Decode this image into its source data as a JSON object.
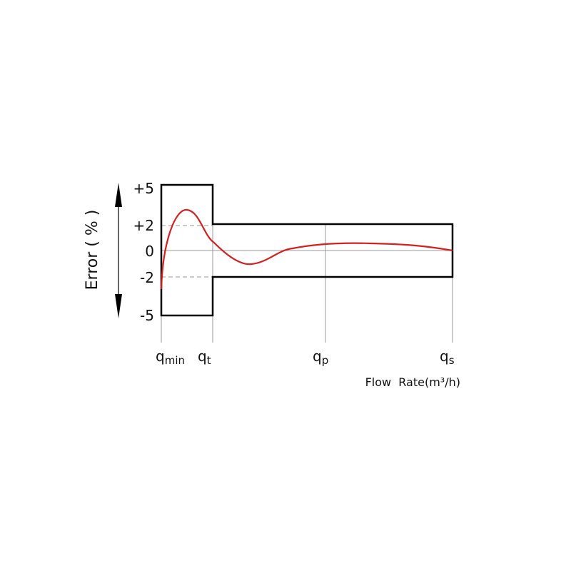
{
  "y_axis": {
    "title": "Error ( % )",
    "labels": [
      "+5",
      "+2",
      "0",
      "-2",
      "-5"
    ]
  },
  "x_axis": {
    "title": "Flow  Rate(m³/h)",
    "labels": [
      {
        "symbol": "q",
        "sub": "min"
      },
      {
        "symbol": "q",
        "sub": "t"
      },
      {
        "symbol": "q",
        "sub": "p"
      },
      {
        "symbol": "q",
        "sub": "s"
      }
    ]
  }
}
